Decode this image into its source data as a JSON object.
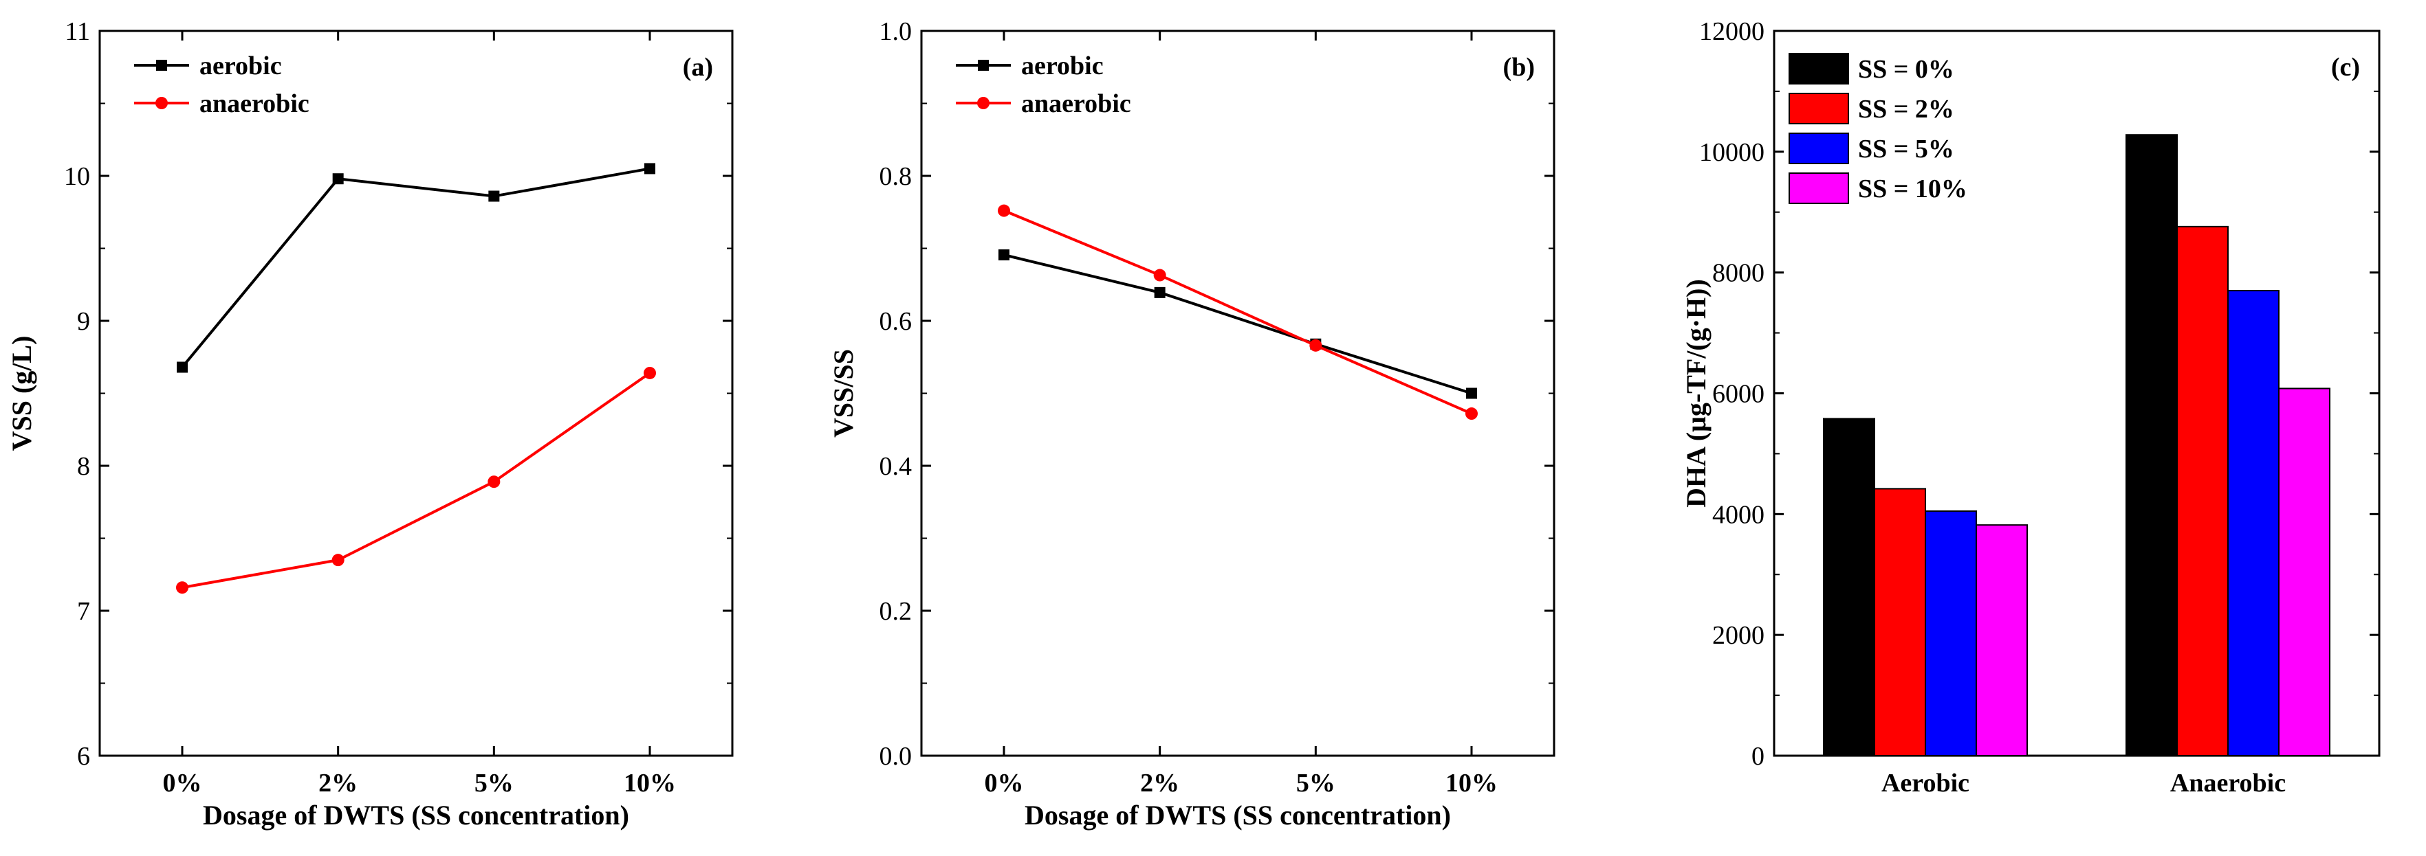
{
  "chart_data": [
    {
      "type": "line",
      "panel_label": "(a)",
      "categories": [
        "0%",
        "2%",
        "5%",
        "10%"
      ],
      "xlabel": "Dosage of DWTS (SS concentration)",
      "ylabel": "VSS (g/L)",
      "ylim": [
        6,
        11
      ],
      "yticks": [
        "6",
        "7",
        "8",
        "9",
        "10",
        "11"
      ],
      "legend_position": "top-left",
      "grid": false,
      "series": [
        {
          "name": "aerobic",
          "color": "#000000",
          "marker": "square",
          "values": [
            8.68,
            9.98,
            9.86,
            10.05
          ]
        },
        {
          "name": "anaerobic",
          "color": "#ff0000",
          "marker": "circle",
          "values": [
            7.16,
            7.35,
            7.89,
            8.64
          ]
        }
      ]
    },
    {
      "type": "line",
      "panel_label": "(b)",
      "categories": [
        "0%",
        "2%",
        "5%",
        "10%"
      ],
      "xlabel": "Dosage of DWTS (SS concentration)",
      "ylabel": "VSS/SS",
      "ylim": [
        0.0,
        1.0
      ],
      "yticks": [
        "0.0",
        "0.2",
        "0.4",
        "0.6",
        "0.8",
        "1.0"
      ],
      "legend_position": "top-left",
      "grid": false,
      "series": [
        {
          "name": "aerobic",
          "color": "#000000",
          "marker": "square",
          "values": [
            0.691,
            0.639,
            0.568,
            0.5
          ]
        },
        {
          "name": "anaerobic",
          "color": "#ff0000",
          "marker": "circle",
          "values": [
            0.752,
            0.663,
            0.566,
            0.472
          ]
        }
      ]
    },
    {
      "type": "bar",
      "panel_label": "(c)",
      "categories": [
        "Aerobic",
        "Anaerobic"
      ],
      "xlabel": "",
      "ylabel": "DHA (μg-TF/(g·H))",
      "ylim": [
        0,
        12000
      ],
      "yticks": [
        "0",
        "2000",
        "4000",
        "6000",
        "8000",
        "10000",
        "12000"
      ],
      "legend_position": "top-left",
      "grid": false,
      "series": [
        {
          "name": "SS = 0%",
          "color": "#000000",
          "values": [
            5580,
            10280
          ]
        },
        {
          "name": "SS = 2%",
          "color": "#ff0000",
          "values": [
            4420,
            8760
          ]
        },
        {
          "name": "SS = 5%",
          "color": "#0000ff",
          "values": [
            4050,
            7700
          ]
        },
        {
          "name": "SS = 10%",
          "color": "#ff00ff",
          "values": [
            3820,
            6080
          ]
        }
      ]
    }
  ]
}
